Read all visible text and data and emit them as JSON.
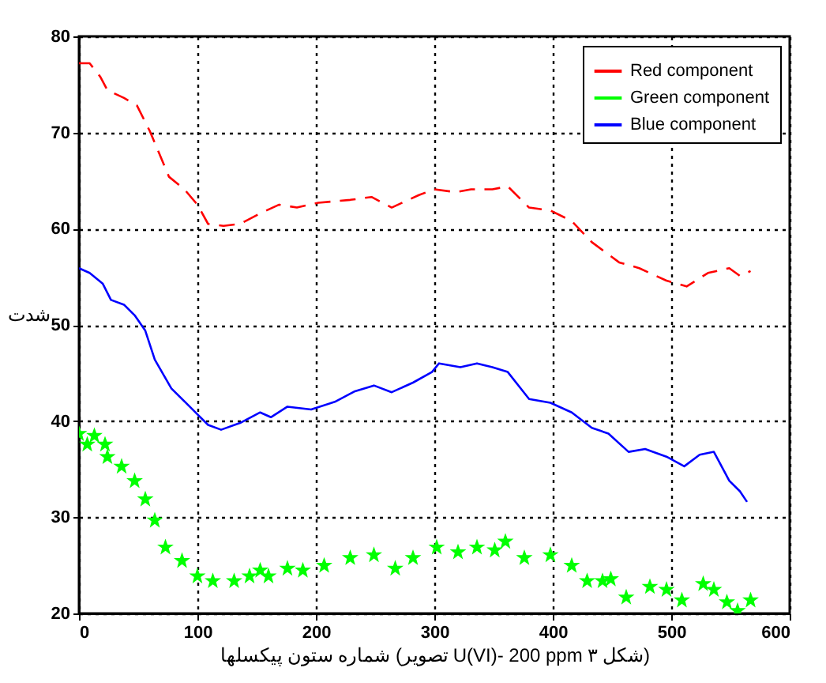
{
  "chart_data": {
    "type": "line",
    "xlabel": "شماره ستون پیکسلها (تصویر U(VI)- 200 ppm شکل ۳)",
    "ylabel": "شدت",
    "xlim": [
      0,
      600
    ],
    "xticks": [
      0,
      100,
      200,
      300,
      400,
      500,
      600
    ],
    "ylim": [
      20,
      80
    ],
    "yticks": [
      20,
      30,
      40,
      50,
      60,
      70,
      80
    ],
    "grid": true,
    "legend": "top right",
    "series": [
      {
        "name": "Red component",
        "line_style": "dashed",
        "color": "#ff0000",
        "x": [
          0,
          9,
          18,
          24,
          38,
          49,
          60,
          76,
          89,
          100,
          109,
          122,
          136,
          153,
          169,
          184,
          202,
          229,
          247,
          264,
          287,
          300,
          318,
          331,
          349,
          362,
          380,
          398,
          416,
          433,
          456,
          473,
          496,
          513,
          531,
          549,
          558,
          567
        ],
        "values": [
          77.2,
          77.2,
          75.8,
          74.4,
          73.6,
          72.8,
          70.1,
          65.4,
          64.1,
          62.5,
          60.5,
          60.3,
          60.5,
          61.6,
          62.5,
          62.2,
          62.7,
          63,
          63.3,
          62.2,
          63.5,
          64.1,
          63.8,
          64.1,
          64.1,
          64.4,
          62.2,
          61.9,
          60.8,
          58.6,
          56.5,
          55.9,
          54.6,
          54,
          55.4,
          55.9,
          55.1,
          55.6
        ]
      },
      {
        "name": "Green component",
        "type": "scatter",
        "marker": "star",
        "color": "#00ff00",
        "x": [
          0,
          7,
          13,
          22,
          24,
          36,
          47,
          56,
          64,
          73,
          87,
          100,
          113,
          131,
          144,
          153,
          160,
          176,
          189,
          207,
          229,
          249,
          267,
          282,
          302,
          320,
          336,
          351,
          360,
          376,
          398,
          416,
          429,
          442,
          449,
          462,
          482,
          496,
          509,
          527,
          536,
          547,
          556,
          567
        ],
        "values": [
          38.7,
          37.6,
          38.5,
          37.6,
          36.3,
          35.3,
          33.8,
          31.9,
          29.7,
          26.9,
          25.5,
          23.9,
          23.4,
          23.4,
          23.9,
          24.5,
          23.9,
          24.7,
          24.5,
          25,
          25.8,
          26.1,
          24.7,
          25.8,
          26.9,
          26.4,
          26.9,
          26.6,
          27.5,
          25.8,
          26.1,
          25,
          23.4,
          23.4,
          23.6,
          21.7,
          22.8,
          22.5,
          21.4,
          23.1,
          22.5,
          21.2,
          20.3,
          21.4
        ]
      },
      {
        "name": "Blue component",
        "line_style": "solid",
        "color": "#0000ff",
        "x": [
          0,
          9,
          20,
          27,
          38,
          47,
          56,
          64,
          78,
          96,
          109,
          120,
          136,
          153,
          162,
          176,
          196,
          216,
          233,
          249,
          264,
          282,
          298,
          304,
          322,
          336,
          349,
          362,
          380,
          398,
          416,
          433,
          447,
          464,
          478,
          496,
          511,
          524,
          536,
          549,
          558,
          564
        ],
        "values": [
          55.9,
          55.4,
          54.3,
          52.6,
          52.1,
          51,
          49.4,
          46.4,
          43.4,
          41.2,
          39.6,
          39.1,
          39.8,
          40.9,
          40.4,
          41.5,
          41.2,
          42,
          43.1,
          43.7,
          43,
          44,
          45.1,
          46,
          45.6,
          46,
          45.6,
          45.1,
          42.3,
          41.9,
          40.9,
          39.3,
          38.7,
          36.8,
          37.1,
          36.3,
          35.3,
          36.5,
          36.8,
          33.8,
          32.7,
          31.6
        ]
      }
    ]
  }
}
